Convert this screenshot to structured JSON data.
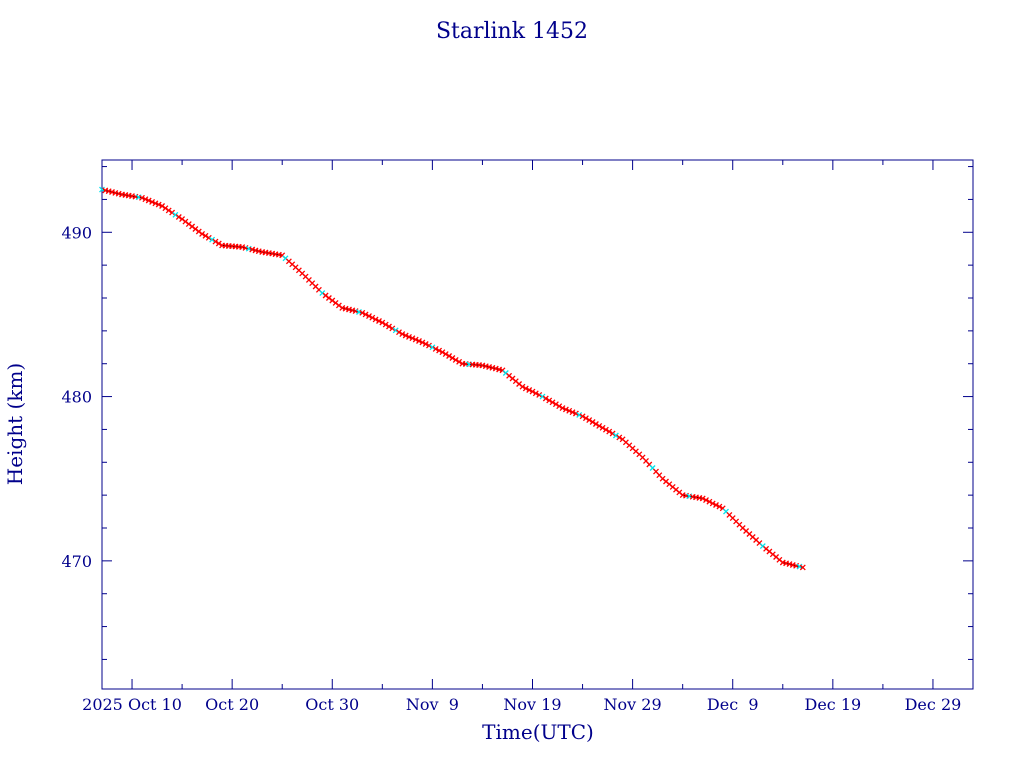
{
  "chart_data": {
    "type": "scatter",
    "title": "Starlink 1452",
    "xlabel": "Time(UTC)",
    "ylabel": "Height (km)",
    "x_unit": "date",
    "xlim": [
      "2025-10-07",
      "2026-01-02"
    ],
    "ylim": [
      462.2,
      494.4
    ],
    "x_ticks": [
      {
        "date": "2025-10-10",
        "label": "2025 Oct 10"
      },
      {
        "date": "2025-10-20",
        "label": "Oct 20"
      },
      {
        "date": "2025-10-30",
        "label": "Oct 30"
      },
      {
        "date": "2025-11-09",
        "label": "Nov  9"
      },
      {
        "date": "2025-11-19",
        "label": "Nov 19"
      },
      {
        "date": "2025-11-29",
        "label": "Nov 29"
      },
      {
        "date": "2025-12-09",
        "label": "Dec  9"
      },
      {
        "date": "2025-12-19",
        "label": "Dec 19"
      },
      {
        "date": "2025-12-29",
        "label": "Dec 29"
      }
    ],
    "y_ticks": [
      470,
      480,
      490
    ],
    "colors": {
      "axis": "#00008b",
      "line": "#000000",
      "points": "#ff0000",
      "highlight": "#00e5ee"
    },
    "series": [
      {
        "x": [
          "2025-10-07",
          "2025-10-09",
          "2025-10-11",
          "2025-10-13",
          "2025-10-15",
          "2025-10-17",
          "2025-10-19",
          "2025-10-21",
          "2025-10-23",
          "2025-10-25",
          "2025-10-27",
          "2025-10-29",
          "2025-10-31",
          "2025-11-02",
          "2025-11-04",
          "2025-11-06",
          "2025-11-08",
          "2025-11-10",
          "2025-11-12",
          "2025-11-14",
          "2025-11-16",
          "2025-11-18",
          "2025-11-20",
          "2025-11-22",
          "2025-11-24",
          "2025-11-26",
          "2025-11-28",
          "2025-11-30",
          "2025-12-02",
          "2025-12-04",
          "2025-12-06",
          "2025-12-08",
          "2025-12-10",
          "2025-12-12",
          "2025-12-14",
          "2025-12-16"
        ],
        "y": [
          492.6,
          492.3,
          492.1,
          491.6,
          490.8,
          489.9,
          489.2,
          489.1,
          488.8,
          488.6,
          487.5,
          486.3,
          485.4,
          485.1,
          484.5,
          483.8,
          483.3,
          482.7,
          482.0,
          481.9,
          481.6,
          480.6,
          480.0,
          479.3,
          478.8,
          478.1,
          477.4,
          476.3,
          475.0,
          474.0,
          473.8,
          473.2,
          472.0,
          470.9,
          469.9,
          469.6
        ]
      }
    ]
  }
}
